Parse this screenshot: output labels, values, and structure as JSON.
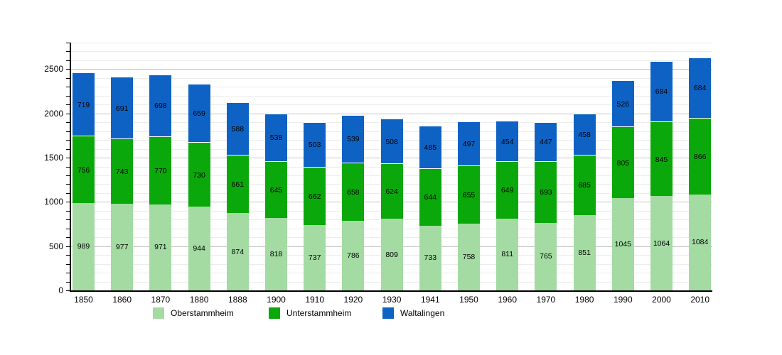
{
  "chart_data": {
    "type": "bar",
    "stacked": true,
    "title": "",
    "categories": [
      "1850",
      "1860",
      "1870",
      "1880",
      "1888",
      "1900",
      "1910",
      "1920",
      "1930",
      "1941",
      "1950",
      "1960",
      "1970",
      "1980",
      "1990",
      "2000",
      "2010"
    ],
    "series": [
      {
        "name": "Oberstammheim",
        "color": "#a3dba3",
        "values": [
          989,
          977,
          971,
          944,
          874,
          818,
          737,
          786,
          809,
          733,
          758,
          811,
          765,
          851,
          1045,
          1064,
          1084
        ]
      },
      {
        "name": "Unterstammheim",
        "color": "#0aa80a",
        "values": [
          756,
          743,
          770,
          730,
          661,
          645,
          662,
          658,
          624,
          644,
          655,
          649,
          693,
          685,
          805,
          845,
          866
        ]
      },
      {
        "name": "Waltalingen",
        "color": "#0e62c4",
        "values": [
          719,
          691,
          698,
          659,
          588,
          538,
          503,
          539,
          508,
          485,
          497,
          454,
          447,
          458,
          526,
          684,
          684
        ]
      }
    ],
    "xlabel": "",
    "ylabel": "",
    "ylim": [
      0,
      2800
    ],
    "y_ticks_labeled": [
      0,
      500,
      1000,
      1500,
      2000,
      2500
    ],
    "grid_minor_step": 100,
    "grid_major_step": 500,
    "legend_position": "bottom",
    "value_labels": "centered inside each segment",
    "colors": {
      "grid_minor": "#ececec",
      "grid_major": "#c3c3c3",
      "axis": "#000000",
      "background": "#ffffff",
      "label_text": "#000000"
    }
  }
}
